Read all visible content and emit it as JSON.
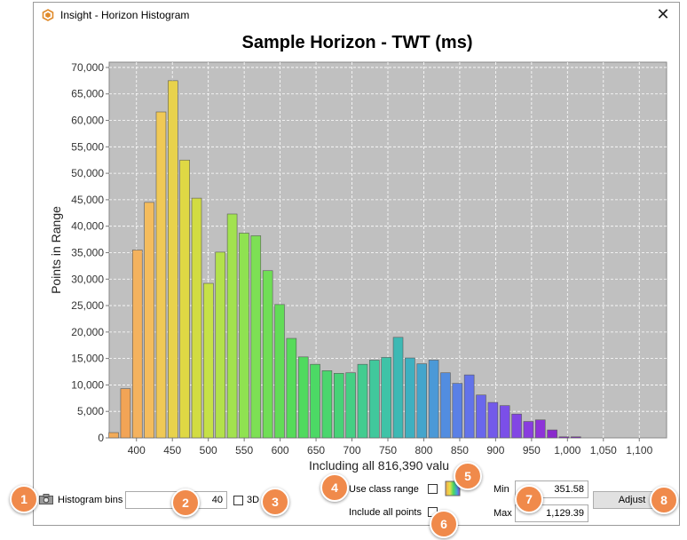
{
  "window": {
    "title": "Insight - Horizon Histogram",
    "close_glyph": "✕"
  },
  "chart_data": {
    "type": "bar",
    "title": "Sample Horizon - TWT (ms)",
    "xlabel": "Including all 816,390 valu",
    "ylabel": "Points in Range",
    "ylim": [
      0,
      71000
    ],
    "xlim": [
      362,
      1138
    ],
    "grid": true,
    "bin_width": 16.5,
    "bins_start": 360,
    "y_ticks": [
      0,
      5000,
      10000,
      15000,
      20000,
      25000,
      30000,
      35000,
      40000,
      45000,
      50000,
      55000,
      60000,
      65000,
      70000
    ],
    "y_tick_labels": [
      "0",
      "5,000",
      "10,000",
      "15,000",
      "20,000",
      "25,000",
      "30,000",
      "35,000",
      "40,000",
      "45,000",
      "50,000",
      "55,000",
      "60,000",
      "65,000",
      "70,000"
    ],
    "x_ticks": [
      400,
      450,
      500,
      550,
      600,
      650,
      700,
      750,
      800,
      850,
      900,
      950,
      1000,
      1050,
      1100
    ],
    "x_tick_labels": [
      "400",
      "450",
      "500",
      "550",
      "600",
      "650",
      "700",
      "750",
      "800",
      "850",
      "900",
      "950",
      "1,000",
      "1,050",
      "1,100"
    ],
    "values": [
      1000,
      9300,
      35500,
      44500,
      61600,
      67500,
      52500,
      45300,
      29200,
      35100,
      42300,
      38700,
      38200,
      31600,
      25200,
      18800,
      15300,
      13900,
      12700,
      12200,
      12300,
      13900,
      14700,
      15200,
      19000,
      15100,
      14000,
      14700,
      12300,
      10300,
      11900,
      8100,
      6700,
      6100,
      4500,
      3100,
      3400,
      1500,
      200,
      200
    ],
    "colors": [
      "#f2ab58",
      "#f2a456",
      "#f4b25e",
      "#f4bc5d",
      "#f0c956",
      "#e8d24c",
      "#dfd844",
      "#d2dc42",
      "#c6e147",
      "#b3e14b",
      "#a2e24f",
      "#8fe251",
      "#7de054",
      "#70de55",
      "#62dc57",
      "#56db5a",
      "#50da5f",
      "#4cd965",
      "#4ad66d",
      "#47d377",
      "#45cf84",
      "#43cc90",
      "#41c89c",
      "#3fc3a7",
      "#3db9b4",
      "#3eb0c0",
      "#44a5cc",
      "#4b99d7",
      "#528de0",
      "#5a80e6",
      "#6273ea",
      "#6a67ec",
      "#735aea",
      "#7b4fe8",
      "#8246e4",
      "#893cdf",
      "#8e33d8",
      "#8a2bcc",
      "#8226c0",
      "#7a22b6"
    ]
  },
  "controls": {
    "histogram_bins_label": "Histogram bins",
    "histogram_bins_value": "40",
    "label_3d": "3D",
    "use_class_range_label": "Use class range",
    "include_all_points_label": "Include all points",
    "min_label": "Min",
    "min_value": "351.58",
    "max_label": "Max",
    "max_value": "1,129.39",
    "adjust_label": "Adjust"
  },
  "callouts": [
    "1",
    "2",
    "3",
    "4",
    "5",
    "6",
    "7",
    "8"
  ],
  "colors": {
    "plot_bg": "#c0c0c0",
    "callout": "#f08a4b",
    "bar_outline": "#5a5a5a"
  },
  "icons": {
    "app": "insight-logo-icon",
    "camera": "camera-icon",
    "color_ramp": "color-ramp-icon"
  }
}
